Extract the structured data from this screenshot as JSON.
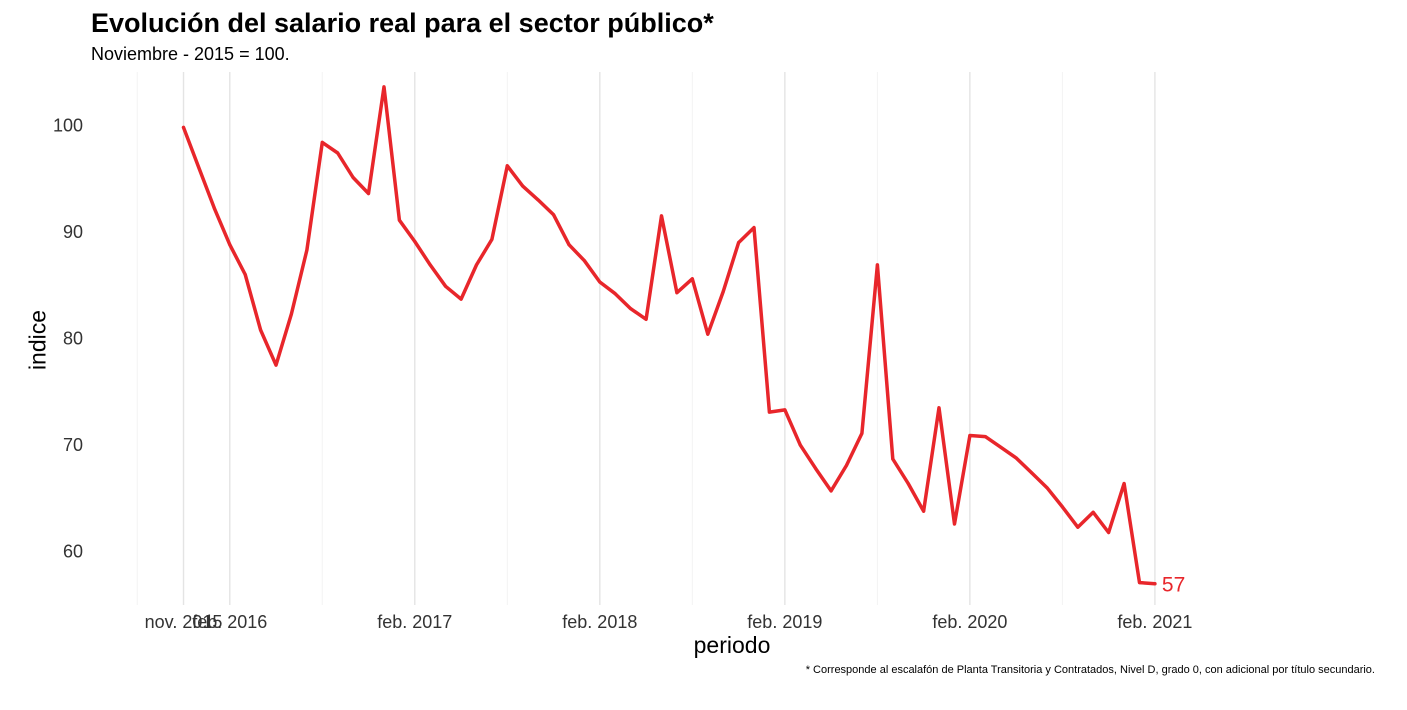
{
  "chart_data": {
    "type": "line",
    "title": "Evolución del salario real para el sector público*",
    "subtitle": "Noviembre - 2015 = 100.",
    "xlabel": "periodo",
    "ylabel": "indice",
    "caption": "* Corresponde al escalafón de Planta Transitoria y Contratados, Nivel D, grado 0, con adicional por título secundario.",
    "ylim": [
      55,
      105
    ],
    "xlim": [
      "2015-05",
      "2021-07"
    ],
    "grid": "vertical only",
    "line_color": "#e8262b",
    "x_ticks": [
      {
        "date": "2015-11",
        "label": "nov. 2015"
      },
      {
        "date": "2016-02",
        "label": "feb. 2016"
      },
      {
        "date": "2017-02",
        "label": "feb. 2017"
      },
      {
        "date": "2018-02",
        "label": "feb. 2018"
      },
      {
        "date": "2019-02",
        "label": "feb. 2019"
      },
      {
        "date": "2020-02",
        "label": "feb. 2020"
      },
      {
        "date": "2021-02",
        "label": "feb. 2021"
      }
    ],
    "y_ticks": [
      60,
      70,
      80,
      90,
      100
    ],
    "end_label": "57",
    "series": [
      {
        "x": [
          "2015-11",
          "2015-12",
          "2016-01",
          "2016-02",
          "2016-03",
          "2016-04",
          "2016-05",
          "2016-06",
          "2016-07",
          "2016-08",
          "2016-09",
          "2016-10",
          "2016-11",
          "2016-12",
          "2017-01",
          "2017-02",
          "2017-03",
          "2017-04",
          "2017-05",
          "2017-06",
          "2017-07",
          "2017-08",
          "2017-09",
          "2017-10",
          "2017-11",
          "2017-12",
          "2018-01",
          "2018-02",
          "2018-03",
          "2018-04",
          "2018-05",
          "2018-06",
          "2018-07",
          "2018-08",
          "2018-09",
          "2018-10",
          "2018-11",
          "2018-12",
          "2019-01",
          "2019-02",
          "2019-03",
          "2019-04",
          "2019-05",
          "2019-06",
          "2019-07",
          "2019-08",
          "2019-09",
          "2019-10",
          "2019-11",
          "2019-12",
          "2020-01",
          "2020-02",
          "2020-03",
          "2020-04",
          "2020-05",
          "2020-06",
          "2020-07",
          "2020-08",
          "2020-09",
          "2020-10",
          "2020-11",
          "2020-12",
          "2021-01",
          "2021-02"
        ],
        "y": [
          99.8,
          96.0,
          92.2,
          88.8,
          86.0,
          80.8,
          77.5,
          82.3,
          88.3,
          98.4,
          97.4,
          95.1,
          93.6,
          103.6,
          91.1,
          89.1,
          86.9,
          84.9,
          83.7,
          86.9,
          89.3,
          96.2,
          94.3,
          93.0,
          91.6,
          88.8,
          87.3,
          85.3,
          84.2,
          82.8,
          81.8,
          91.5,
          84.3,
          85.6,
          80.4,
          84.4,
          89.0,
          90.4,
          73.1,
          73.3,
          70.0,
          67.8,
          65.7,
          68.1,
          71.1,
          86.9,
          68.7,
          66.4,
          63.8,
          73.5,
          62.6,
          70.9,
          70.8,
          69.8,
          68.8,
          67.4,
          66.0,
          64.2,
          62.3,
          63.7,
          61.8,
          66.4,
          57.1,
          57.0
        ]
      }
    ]
  }
}
